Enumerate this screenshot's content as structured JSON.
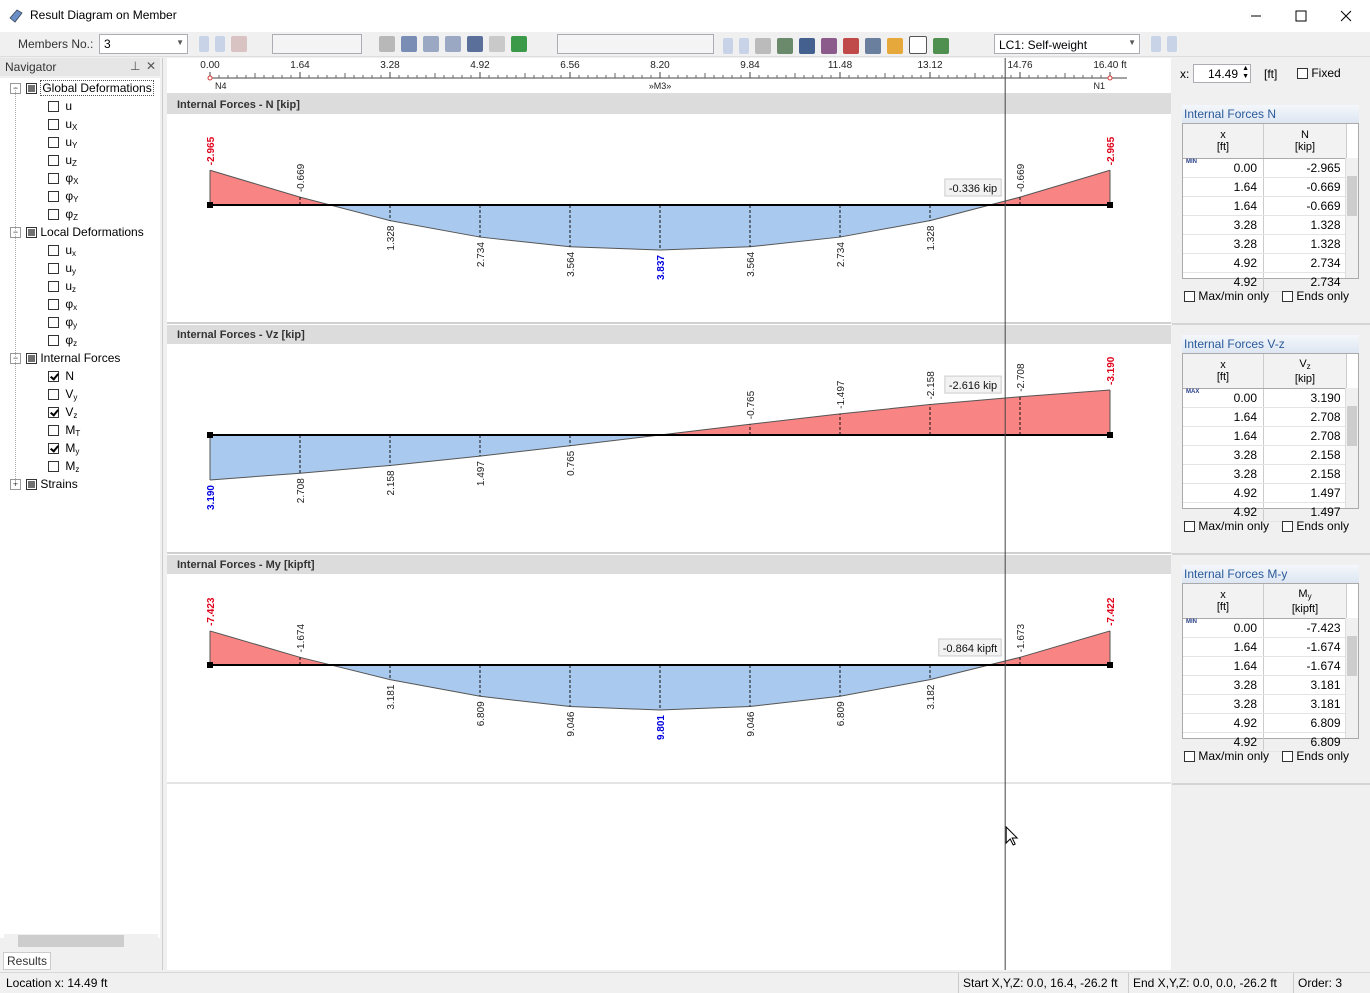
{
  "window": {
    "title": "Result Diagram on Member"
  },
  "toolbar": {
    "members_label": "Members No.:",
    "member": "3",
    "load_case": "LC1: Self-weight"
  },
  "navigator": {
    "title": "Navigator",
    "tab": "Results",
    "groups": [
      {
        "label": "Global Deformations",
        "expanded": true,
        "items": [
          {
            "symbol": "u",
            "checked": false
          },
          {
            "symbol": "u",
            "sub": "X",
            "checked": false
          },
          {
            "symbol": "u",
            "sub": "Y",
            "checked": false
          },
          {
            "symbol": "u",
            "sub": "Z",
            "checked": false
          },
          {
            "symbol": "φ",
            "sub": "X",
            "checked": false
          },
          {
            "symbol": "φ",
            "sub": "Y",
            "checked": false
          },
          {
            "symbol": "φ",
            "sub": "Z",
            "checked": false
          }
        ]
      },
      {
        "label": "Local Deformations",
        "expanded": true,
        "items": [
          {
            "symbol": "u",
            "sub": "x",
            "checked": false
          },
          {
            "symbol": "u",
            "sub": "y",
            "checked": false
          },
          {
            "symbol": "u",
            "sub": "z",
            "checked": false
          },
          {
            "symbol": "φ",
            "sub": "x",
            "checked": false
          },
          {
            "symbol": "φ",
            "sub": "y",
            "checked": false
          },
          {
            "symbol": "φ",
            "sub": "z",
            "checked": false
          }
        ]
      },
      {
        "label": "Internal Forces",
        "expanded": true,
        "items": [
          {
            "symbol": "N",
            "checked": true
          },
          {
            "symbol": "V",
            "sub": "y",
            "checked": false
          },
          {
            "symbol": "V",
            "sub": "z",
            "checked": true
          },
          {
            "symbol": "M",
            "sub": "T",
            "checked": false
          },
          {
            "symbol": "M",
            "sub": "y",
            "checked": true
          },
          {
            "symbol": "M",
            "sub": "z",
            "checked": false
          }
        ]
      },
      {
        "label": "Strains",
        "expanded": false,
        "items": []
      }
    ]
  },
  "chart_data": {
    "type": "member-diagram",
    "xlim": [
      0,
      16.4
    ],
    "xticks": [
      {
        "value": 0,
        "label": "0.00"
      },
      1.64,
      3.28,
      4.92,
      6.56,
      {
        "value": 8.2,
        "label": "8.20"
      },
      9.84,
      11.48,
      13.12,
      14.76,
      {
        "value": 16.4,
        "label": "16.40 ft"
      }
    ],
    "nodes": [
      {
        "x": 0,
        "label": "N4"
      },
      {
        "x": 16.4,
        "label": "N1"
      }
    ],
    "member_label": "»M3»",
    "cursor": {
      "x": 14.49
    },
    "x": [
      0,
      1.64,
      3.28,
      4.92,
      6.56,
      8.2,
      9.84,
      11.48,
      13.12,
      14.76,
      16.4
    ],
    "positive_color": "#a9c9ee",
    "negative_color": "#f98484",
    "max_label_color": "#0000e0",
    "min_label_color": "#e0001a",
    "panels": [
      {
        "title": "Internal Forces - N [kip]",
        "values": [
          -2.965,
          -0.669,
          1.328,
          2.734,
          3.564,
          3.837,
          3.564,
          2.734,
          1.328,
          -0.669,
          -2.965
        ],
        "min_indices": [
          0,
          10
        ],
        "max_indices": [
          5
        ],
        "cursor_label": "-0.336 kip"
      },
      {
        "title": "Internal Forces - Vz [kip]",
        "values": [
          3.19,
          2.708,
          2.158,
          1.497,
          0.765,
          0,
          -0.765,
          -1.497,
          -2.158,
          -2.708,
          -3.19
        ],
        "value_labels": [
          "3.190",
          "2.708",
          "2.158",
          "1.497",
          "0.765",
          null,
          "-0.765",
          "-1.497",
          "-2.158",
          "-2.708",
          "-3.190"
        ],
        "min_indices": [
          10
        ],
        "max_indices": [
          0
        ],
        "cursor_label": "-2.616 kip"
      },
      {
        "title": "Internal Forces - My [kipft]",
        "values": [
          -7.423,
          -1.674,
          3.181,
          6.809,
          9.046,
          9.801,
          9.046,
          6.809,
          3.182,
          -1.673,
          -7.422
        ],
        "min_indices": [
          0,
          10
        ],
        "max_indices": [
          5
        ],
        "cursor_label": "-0.864 kipft"
      }
    ]
  },
  "cursor_panel": {
    "label": "x:",
    "unit": "[ft]",
    "fixed": "Fixed"
  },
  "tables": [
    {
      "title": "Internal Forces N",
      "columns": [
        {
          "name": "x",
          "unit": "[ft]"
        },
        {
          "name": "N",
          "unit": "[kip]"
        }
      ],
      "row_icon": "MIN",
      "rows": [
        [
          "0.00",
          "-2.965"
        ],
        [
          "1.64",
          "-0.669"
        ],
        [
          "1.64",
          "-0.669"
        ],
        [
          "3.28",
          "1.328"
        ],
        [
          "3.28",
          "1.328"
        ],
        [
          "4.92",
          "2.734"
        ],
        [
          "4.92",
          "2.734"
        ]
      ],
      "options": [
        "Max/min only",
        "Ends only"
      ]
    },
    {
      "title": "Internal Forces V-z",
      "columns": [
        {
          "name": "x",
          "unit": "[ft]"
        },
        {
          "name": "V",
          "sub": "z",
          "unit": "[kip]"
        }
      ],
      "row_icon": "MAX",
      "rows": [
        [
          "0.00",
          "3.190"
        ],
        [
          "1.64",
          "2.708"
        ],
        [
          "1.64",
          "2.708"
        ],
        [
          "3.28",
          "2.158"
        ],
        [
          "3.28",
          "2.158"
        ],
        [
          "4.92",
          "1.497"
        ],
        [
          "4.92",
          "1.497"
        ]
      ],
      "options": [
        "Max/min only",
        "Ends only"
      ]
    },
    {
      "title": "Internal Forces M-y",
      "columns": [
        {
          "name": "x",
          "unit": "[ft]"
        },
        {
          "name": "M",
          "sub": "y",
          "unit": "[kipft]"
        }
      ],
      "row_icon": "MIN",
      "rows": [
        [
          "0.00",
          "-7.423"
        ],
        [
          "1.64",
          "-1.674"
        ],
        [
          "1.64",
          "-1.674"
        ],
        [
          "3.28",
          "3.181"
        ],
        [
          "3.28",
          "3.181"
        ],
        [
          "4.92",
          "6.809"
        ],
        [
          "4.92",
          "6.809"
        ]
      ],
      "options": [
        "Max/min only",
        "Ends only"
      ]
    }
  ],
  "status": {
    "location": "Location x: 14.49 ft",
    "start": "Start X,Y,Z:  0.0, 16.4, -26.2 ft",
    "end": "End X,Y,Z:  0.0, 0.0, -26.2 ft",
    "order": "Order:   3"
  }
}
